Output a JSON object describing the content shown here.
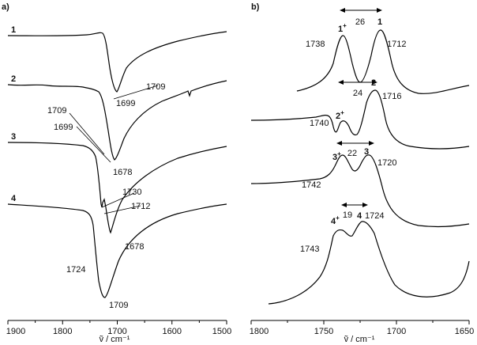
{
  "chart_data": [
    {
      "type": "line",
      "panel_label": "a)",
      "xlabel": "ṽ / cm⁻¹",
      "xlim": [
        1900,
        1500
      ],
      "x_ticks": [
        "1900",
        "1800",
        "1700",
        "1600",
        "1500"
      ],
      "x_tick_values": [
        1900,
        1800,
        1700,
        1600,
        1500
      ],
      "series": [
        {
          "name": "1",
          "peaks": [
            {
              "x": 1699,
              "label": "1699"
            },
            {
              "x": 1709,
              "label": "1709"
            }
          ]
        },
        {
          "name": "2",
          "peaks": [
            {
              "x": 1709,
              "label": "1709"
            },
            {
              "x": 1699,
              "label": "1699"
            },
            {
              "x": 1678,
              "label": "1678"
            }
          ]
        },
        {
          "name": "3",
          "peaks": [
            {
              "x": 1730,
              "label": "1730"
            },
            {
              "x": 1712,
              "label": "1712"
            }
          ]
        },
        {
          "name": "4",
          "peaks": [
            {
              "x": 1678,
              "label": "1678"
            },
            {
              "x": 1724,
              "label": "1724"
            },
            {
              "x": 1709,
              "label": "1709"
            }
          ]
        }
      ]
    },
    {
      "type": "line",
      "panel_label": "b)",
      "xlabel": "ṽ / cm⁻¹",
      "xlim": [
        1800,
        1650
      ],
      "x_ticks": [
        "1800",
        "1750",
        "1700",
        "1650"
      ],
      "x_tick_values": [
        1800,
        1750,
        1700,
        1650
      ],
      "series": [
        {
          "name": "1",
          "star": "1",
          "peaks": [
            {
              "x": 1738,
              "label": "1738"
            },
            {
              "x": 1712,
              "label": "1712"
            }
          ],
          "delta": "26"
        },
        {
          "name": "2",
          "star": "2",
          "peaks": [
            {
              "x": 1740,
              "label": "1740"
            },
            {
              "x": 1716,
              "label": "1716"
            }
          ],
          "delta": "24"
        },
        {
          "name": "3",
          "star": "3",
          "peaks": [
            {
              "x": 1742,
              "label": "1742"
            },
            {
              "x": 1720,
              "label": "1720"
            }
          ],
          "delta": "22"
        },
        {
          "name": "4",
          "star": "4",
          "peaks": [
            {
              "x": 1743,
              "label": "1743"
            },
            {
              "x": 1724,
              "label": "1724"
            }
          ],
          "delta": "19"
        }
      ]
    }
  ]
}
